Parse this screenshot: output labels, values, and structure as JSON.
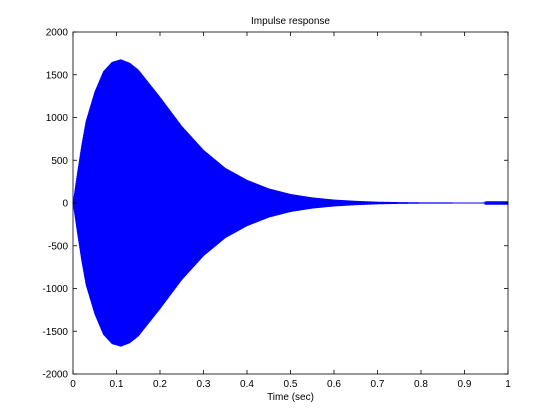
{
  "chart_data": {
    "type": "line",
    "title": "Impulse response",
    "xlabel": "Time (sec)",
    "ylabel": "",
    "xlim": [
      0,
      1
    ],
    "ylim": [
      -2000,
      2000
    ],
    "x_ticks": [
      0,
      0.1,
      0.2,
      0.3,
      0.4,
      0.5,
      0.6,
      0.7,
      0.8,
      0.9,
      1
    ],
    "x_tick_labels": [
      "0",
      "0.1",
      "0.2",
      "0.3",
      "0.4",
      "0.5",
      "0.6",
      "0.7",
      "0.8",
      "0.9",
      "1"
    ],
    "y_ticks": [
      -2000,
      -1500,
      -1000,
      -500,
      0,
      500,
      1000,
      1500,
      2000
    ],
    "y_tick_labels": [
      "-2000",
      "-1500",
      "-1000",
      "-500",
      "0",
      "500",
      "1000",
      "1500",
      "2000"
    ],
    "grid": false,
    "series": [
      {
        "color": "#0000ff",
        "description": "rapidly oscillating signal whose amplitude grows from 0, peaks near t=0.11 s, then decays",
        "envelope": {
          "x": [
            0,
            0.01,
            0.02,
            0.03,
            0.05,
            0.07,
            0.09,
            0.11,
            0.13,
            0.15,
            0.2,
            0.25,
            0.3,
            0.35,
            0.4,
            0.45,
            0.5,
            0.55,
            0.6,
            0.65,
            0.7,
            0.75,
            0.8,
            0.85,
            0.9,
            0.95,
            1.0
          ],
          "y": [
            0,
            350,
            680,
            960,
            1300,
            1540,
            1650,
            1680,
            1640,
            1560,
            1240,
            900,
            620,
            410,
            270,
            170,
            105,
            65,
            40,
            25,
            15,
            10,
            7,
            6,
            5,
            4,
            4
          ]
        }
      }
    ]
  }
}
